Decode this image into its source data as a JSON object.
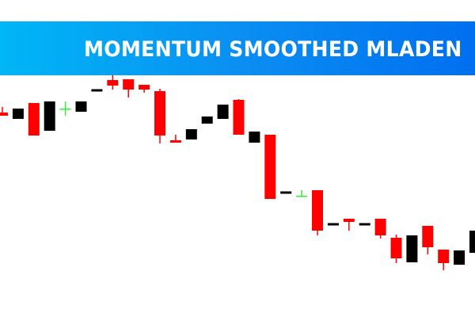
{
  "banner": {
    "title": "MOMENTUM SMOOTHED MLADEN"
  },
  "colors": {
    "banner_start": "#00b6f6",
    "banner_end": "#006ff0",
    "bear": "#ff0000",
    "bull": "#000000",
    "doji": "#33ee33"
  },
  "chart_data": {
    "type": "candlestick",
    "title": "MOMENTUM SMOOTHED MLADEN",
    "xlabel": "",
    "ylabel": "",
    "grid": false,
    "candles": [
      {
        "o": 258,
        "h": 265,
        "l": 254,
        "c": 254,
        "color": "red"
      },
      {
        "o": 250,
        "h": 263,
        "l": 250,
        "c": 263,
        "color": "black"
      },
      {
        "o": 270,
        "h": 270,
        "l": 229,
        "c": 229,
        "color": "red"
      },
      {
        "o": 235,
        "h": 272,
        "l": 235,
        "c": 272,
        "color": "black"
      },
      {
        "o": 263,
        "h": 272,
        "l": 254,
        "c": 263,
        "color": "green"
      },
      {
        "o": 259,
        "h": 272,
        "l": 259,
        "c": 272,
        "color": "black"
      },
      {
        "o": 286,
        "h": 286,
        "l": 286,
        "c": 286,
        "color": "black"
      },
      {
        "o": 299,
        "h": 305,
        "l": 287,
        "c": 292,
        "color": "red"
      },
      {
        "o": 300,
        "h": 300,
        "l": 277,
        "c": 287,
        "color": "red"
      },
      {
        "o": 293,
        "h": 293,
        "l": 283,
        "c": 287,
        "color": "red"
      },
      {
        "o": 285,
        "h": 288,
        "l": 219,
        "c": 229,
        "color": "red"
      },
      {
        "o": 223,
        "h": 230,
        "l": 220,
        "c": 220,
        "color": "red"
      },
      {
        "o": 224,
        "h": 237,
        "l": 224,
        "c": 237,
        "color": "black"
      },
      {
        "o": 244,
        "h": 253,
        "l": 244,
        "c": 253,
        "color": "black"
      },
      {
        "o": 250,
        "h": 268,
        "l": 250,
        "c": 268,
        "color": "black"
      },
      {
        "o": 274,
        "h": 275,
        "l": 230,
        "c": 230,
        "color": "red"
      },
      {
        "o": 220,
        "h": 234,
        "l": 220,
        "c": 234,
        "color": "black"
      },
      {
        "o": 230,
        "h": 230,
        "l": 149,
        "c": 149,
        "color": "red"
      },
      {
        "o": 157,
        "h": 157,
        "l": 157,
        "c": 157,
        "color": "black"
      },
      {
        "o": 153,
        "h": 160,
        "l": 153,
        "c": 153,
        "color": "green"
      },
      {
        "o": 160,
        "h": 160,
        "l": 103,
        "c": 109,
        "color": "red"
      },
      {
        "o": 117,
        "h": 117,
        "l": 117,
        "c": 117,
        "color": "black"
      },
      {
        "o": 124,
        "h": 124,
        "l": 109,
        "c": 120,
        "color": "red"
      },
      {
        "o": 117,
        "h": 117,
        "l": 117,
        "c": 117,
        "color": "black"
      },
      {
        "o": 124,
        "h": 124,
        "l": 99,
        "c": 103,
        "color": "red"
      },
      {
        "o": 100,
        "h": 104,
        "l": 68,
        "c": 74,
        "color": "red"
      },
      {
        "o": 69,
        "h": 103,
        "l": 69,
        "c": 103,
        "color": "black"
      },
      {
        "o": 115,
        "h": 115,
        "l": 79,
        "c": 88,
        "color": "red"
      },
      {
        "o": 85,
        "h": 85,
        "l": 59,
        "c": 68,
        "color": "red"
      },
      {
        "o": 66,
        "h": 84,
        "l": 66,
        "c": 84,
        "color": "black"
      },
      {
        "o": 81,
        "h": 109,
        "l": 81,
        "c": 109,
        "color": "black"
      }
    ]
  }
}
